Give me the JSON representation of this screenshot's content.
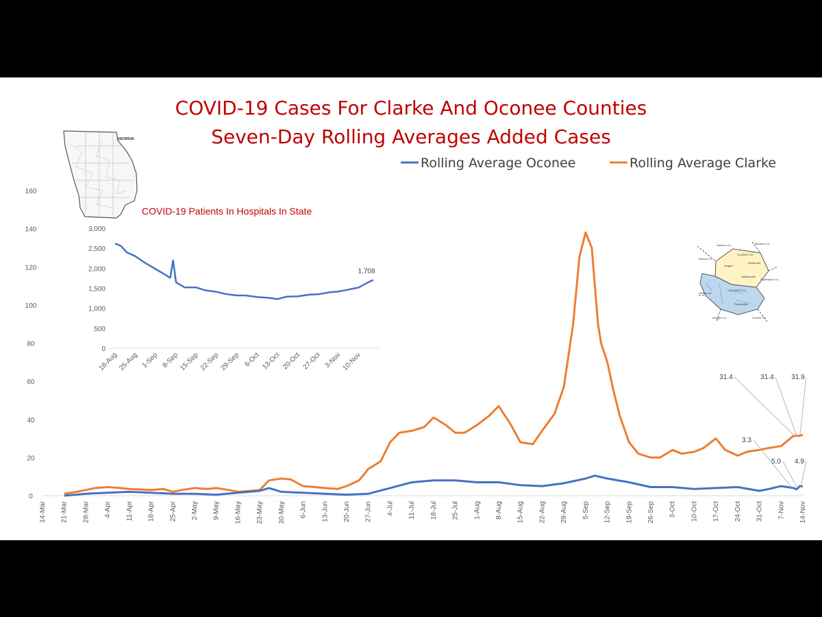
{
  "chart_data": [
    {
      "type": "line",
      "title": "COVID-19 Cases For Clarke And Oconee Counties",
      "subtitle": "Seven-Day Rolling Averages Added Cases",
      "ylim": [
        0,
        160
      ],
      "yticks": [
        0,
        20,
        40,
        60,
        80,
        100,
        120,
        140,
        160
      ],
      "xticks": [
        "14-Mar",
        "21-Mar",
        "28-Mar",
        "4-Apr",
        "11-Apr",
        "18-Apr",
        "25-Apr",
        "2-May",
        "9-May",
        "16-May",
        "23-May",
        "30-May",
        "6-Jun",
        "13-Jun",
        "20-Jun",
        "27-Jun",
        "4-Jul",
        "11-Jul",
        "18-Jul",
        "25-Jul",
        "1-Aug",
        "8-Aug",
        "15-Aug",
        "22-Aug",
        "29-Aug",
        "5-Sep",
        "12-Sep",
        "19-Sep",
        "26-Sep",
        "3-Oct",
        "10-Oct",
        "17-Oct",
        "24-Oct",
        "31-Oct",
        "7-Nov",
        "14-Nov"
      ],
      "legend_position": "top-right",
      "series": [
        {
          "name": "Rolling Average Oconee",
          "color": "#4472c4",
          "x": [
            "21-Mar",
            "28-Mar",
            "4-Apr",
            "11-Apr",
            "18-Apr",
            "25-Apr",
            "2-May",
            "9-May",
            "16-May",
            "23-May",
            "26-May",
            "30-May",
            "6-Jun",
            "13-Jun",
            "20-Jun",
            "27-Jun",
            "4-Jul",
            "11-Jul",
            "18-Jul",
            "25-Jul",
            "1-Aug",
            "8-Aug",
            "15-Aug",
            "22-Aug",
            "29-Aug",
            "5-Sep",
            "8-Sep",
            "12-Sep",
            "19-Sep",
            "26-Sep",
            "3-Oct",
            "10-Oct",
            "17-Oct",
            "24-Oct",
            "31-Oct",
            "3-Nov",
            "7-Nov",
            "11-Nov",
            "12-Nov",
            "13-Nov",
            "14-Nov"
          ],
          "values": [
            0,
            1,
            1.5,
            2,
            1.5,
            1,
            1,
            0.5,
            1.5,
            2.5,
            4,
            2,
            1.5,
            1,
            0.5,
            1,
            4,
            7,
            8,
            8,
            7,
            7,
            5.5,
            5,
            6.5,
            9,
            10.5,
            9,
            7,
            4.5,
            4.5,
            3.5,
            4,
            4.5,
            2.5,
            3.5,
            5,
            4,
            3.3,
            5,
            4.9
          ]
        },
        {
          "name": "Rolling Average Clarke",
          "color": "#ed7d31",
          "x": [
            "21-Mar",
            "25-Mar",
            "28-Mar",
            "31-Mar",
            "4-Apr",
            "8-Apr",
            "11-Apr",
            "18-Apr",
            "22-Apr",
            "25-Apr",
            "28-Apr",
            "2-May",
            "6-May",
            "9-May",
            "13-May",
            "16-May",
            "20-May",
            "23-May",
            "26-May",
            "30-May",
            "2-Jun",
            "6-Jun",
            "10-Jun",
            "13-Jun",
            "17-Jun",
            "20-Jun",
            "24-Jun",
            "27-Jun",
            "1-Jul",
            "4-Jul",
            "7-Jul",
            "11-Jul",
            "15-Jul",
            "18-Jul",
            "22-Jul",
            "25-Jul",
            "28-Jul",
            "1-Aug",
            "5-Aug",
            "8-Aug",
            "12-Aug",
            "15-Aug",
            "19-Aug",
            "22-Aug",
            "26-Aug",
            "29-Aug",
            "1-Sep",
            "3-Sep",
            "5-Sep",
            "7-Sep",
            "9-Sep",
            "10-Sep",
            "12-Sep",
            "14-Sep",
            "16-Sep",
            "19-Sep",
            "22-Sep",
            "26-Sep",
            "29-Sep",
            "3-Oct",
            "6-Oct",
            "10-Oct",
            "13-Oct",
            "17-Oct",
            "20-Oct",
            "24-Oct",
            "27-Oct",
            "31-Oct",
            "3-Nov",
            "7-Nov",
            "11-Nov",
            "12-Nov",
            "13-Nov",
            "14-Nov"
          ],
          "values": [
            1,
            2,
            3,
            4,
            4.5,
            4,
            3.5,
            3,
            3.5,
            2,
            3,
            4,
            3.5,
            4,
            3,
            2,
            2.5,
            3,
            8,
            9,
            8.5,
            5,
            4.5,
            4,
            3.5,
            5,
            8,
            14,
            18,
            28,
            33,
            34,
            36,
            41,
            37,
            33,
            33,
            37,
            42,
            47,
            37,
            28,
            27,
            34,
            43,
            57,
            90,
            125,
            138,
            130,
            90,
            80,
            70,
            55,
            42,
            28,
            22,
            20,
            20,
            24,
            22,
            23,
            25,
            30,
            24,
            21,
            23,
            24,
            25,
            26,
            31.4,
            31.4,
            31.4,
            31.9
          ]
        }
      ],
      "annotations": [
        "31.4",
        "31.4",
        "31.9",
        "3.3",
        "5.0",
        "4.9"
      ]
    },
    {
      "type": "line",
      "title": "COVID-19 Patients In Hospitals In State",
      "ylim": [
        0,
        3000
      ],
      "yticks": [
        "0",
        "500",
        "1,000",
        "1,500",
        "2,000",
        "2,500",
        "3,000"
      ],
      "xticks": [
        "18-Aug",
        "25-Aug",
        "1-Sep",
        "8-Sep",
        "15-Sep",
        "22-Sep",
        "29-Sep",
        "6-Oct",
        "13-Oct",
        "20-Oct",
        "27-Oct",
        "3-Nov",
        "10-Nov"
      ],
      "series": [
        {
          "color": "#4472c4",
          "x": [
            "18-Aug",
            "20-Aug",
            "22-Aug",
            "25-Aug",
            "28-Aug",
            "1-Sep",
            "4-Sep",
            "6-Sep",
            "7-Sep",
            "8-Sep",
            "11-Sep",
            "15-Sep",
            "18-Sep",
            "22-Sep",
            "25-Sep",
            "29-Sep",
            "2-Oct",
            "6-Oct",
            "10-Oct",
            "13-Oct",
            "16-Oct",
            "20-Oct",
            "24-Oct",
            "27-Oct",
            "31-Oct",
            "3-Nov",
            "6-Nov",
            "10-Nov",
            "13-Nov",
            "15-Nov"
          ],
          "values": [
            2620,
            2560,
            2400,
            2300,
            2150,
            1980,
            1850,
            1760,
            2200,
            1650,
            1520,
            1520,
            1450,
            1410,
            1360,
            1320,
            1320,
            1280,
            1260,
            1230,
            1290,
            1300,
            1340,
            1350,
            1400,
            1420,
            1460,
            1520,
            1640,
            1708
          ]
        }
      ],
      "annotations": [
        "1,708"
      ]
    }
  ],
  "icons": [
    "georgia-map-icon",
    "clarke-oconee-map-icon"
  ],
  "maps": {
    "georgia_label": "GEORGIA",
    "county_labels": [
      "Jackson Co.",
      "Madison Co.",
      "Barrow Co.",
      "CLARKE CO.",
      "OCONEE CO.",
      "Bogart",
      "Winterville",
      "Watkinsville",
      "Walton Co.",
      "Morgan Co.",
      "Greene Co.",
      "Oglethorpe Co.",
      "Farmington"
    ]
  }
}
